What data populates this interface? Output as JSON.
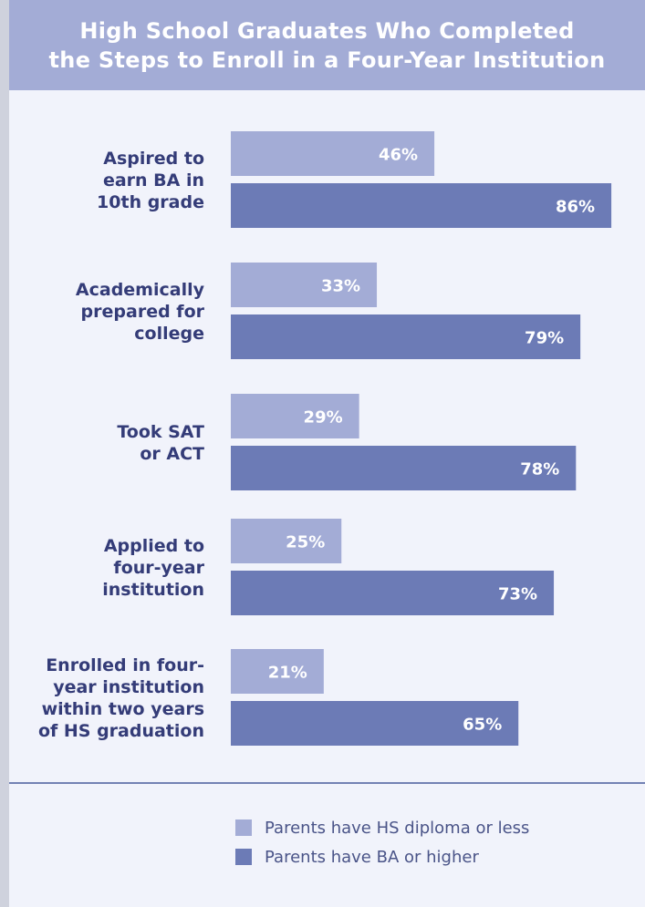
{
  "title_lines": [
    "High School Graduates Who Completed",
    "the Steps to Enroll in a Four-Year Institution"
  ],
  "colors": {
    "light_bar": "#a3acd6",
    "dark_bar": "#6c7bb6",
    "label_text": "#343c78",
    "value_text": "#ffffff"
  },
  "legend": [
    {
      "label": "Parents have HS diploma or less",
      "color": "#a3acd6"
    },
    {
      "label": "Parents have BA or higher",
      "color": "#6c7bb6"
    }
  ],
  "chart_data": {
    "type": "bar",
    "orientation": "horizontal",
    "categories": [
      [
        "Aspired to",
        "earn BA in",
        "10th grade"
      ],
      [
        "Academically",
        "prepared for",
        "college"
      ],
      [
        "Took SAT",
        "or ACT"
      ],
      [
        "Applied to",
        "four-year",
        "institution"
      ],
      [
        "Enrolled in four-",
        "year institution",
        "within two years",
        "of HS graduation"
      ]
    ],
    "series": [
      {
        "name": "Parents have HS diploma or less",
        "values": [
          46,
          33,
          29,
          25,
          21
        ],
        "labels": [
          "46%",
          "33%",
          "29%",
          "25%",
          "21%"
        ]
      },
      {
        "name": "Parents have BA or higher",
        "values": [
          86,
          79,
          78,
          73,
          65
        ],
        "labels": [
          "86%",
          "79%",
          "78%",
          "73%",
          "65%"
        ]
      }
    ],
    "xlim": [
      0,
      100
    ],
    "grid": false,
    "legend_position": "bottom"
  }
}
